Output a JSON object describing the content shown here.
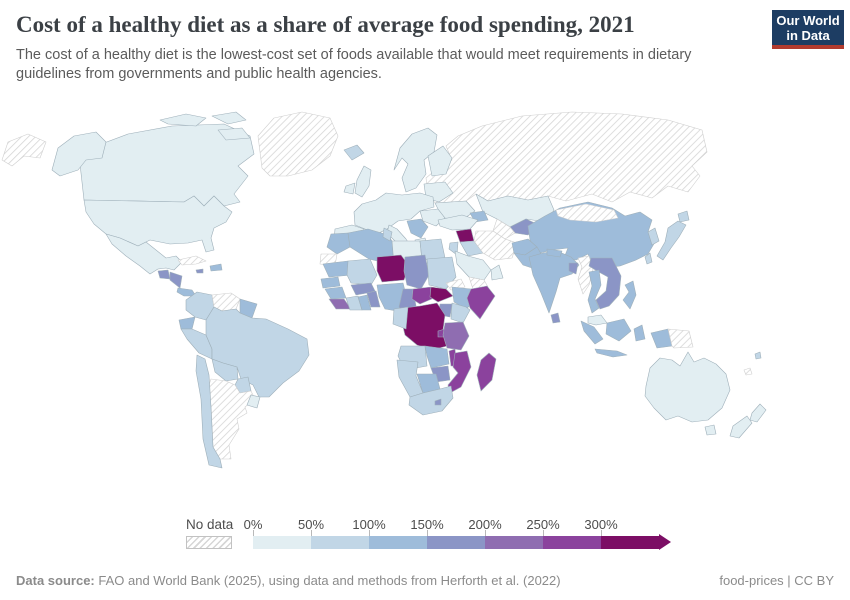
{
  "header": {
    "title": "Cost of a healthy diet as a share of average food spending, 2021",
    "subtitle": "The cost of a healthy diet is the lowest-cost set of foods available that would meet requirements in dietary guidelines from governments and public health agencies.",
    "logo": {
      "line1": "Our World",
      "line2": "in Data",
      "bg_color": "#1d3d63",
      "accent_color": "#b13b2f",
      "text_color": "#ffffff"
    }
  },
  "legend": {
    "no_data_label": "No data",
    "tick_labels": [
      "0%",
      "50%",
      "100%",
      "150%",
      "200%",
      "250%",
      "300%"
    ],
    "bin_colors": [
      "#e2eef2",
      "#c1d6e6",
      "#9ebcda",
      "#8b95c6",
      "#8f6db1",
      "#8b429d",
      "#7c0e65"
    ]
  },
  "footer": {
    "source_label": "Data source:",
    "source_text": " FAO and World Bank (2025), using data and methods from Herforth et al. (2022)",
    "note_right": "food-prices | CC BY"
  },
  "map": {
    "ocean_color": "#ffffff",
    "border_color": "#9fb0ba",
    "nodata_border_color": "#cfcfcf",
    "hatch_line_color": "#d6d6d6"
  },
  "chart_data": {
    "type": "choropleth",
    "title": "Cost of a healthy diet as a share of average food spending, 2021",
    "unit": "% of average food spending",
    "legend_ticks": [
      "0%",
      "50%",
      "100%",
      "150%",
      "200%",
      "250%",
      "300%"
    ],
    "bin_labels": [
      "No data",
      "0-50%",
      "50-100%",
      "100-150%",
      "150-200%",
      "200-250%",
      "250-300%",
      "300%+"
    ],
    "regions": {
      "russia": 0,
      "russia-far-east": 0,
      "greenland": 0,
      "canada": 1,
      "canada-arctic": 1,
      "alaska": 1,
      "usa": 1,
      "mexico": 1,
      "guatemala": 4,
      "honduras-nicaragua": 4,
      "costa-rica-panama": 3,
      "cuba": 0,
      "jamaica": 4,
      "hispaniola": 3,
      "colombia": 2,
      "venezuela": 0,
      "guianas": 3,
      "ecuador": 3,
      "peru": 2,
      "brazil": 2,
      "bolivia": 2,
      "paraguay": 2,
      "argentina": 0,
      "chile": 2,
      "uruguay": 1,
      "iceland": 2,
      "ireland": 1,
      "uk": 1,
      "scandinavia": 1,
      "finland": 1,
      "belarus-baltics": 1,
      "europe-central": 1,
      "iberia": 1,
      "italy": 1,
      "balkans": 3,
      "greece": 1,
      "romania-bulgaria": 1,
      "ukraine": 1,
      "kazakhstan": 1,
      "uzbekistan": 4,
      "turkmenistan": 0,
      "caucasus": 3,
      "turkey": 1,
      "syria": 7,
      "iraq": 2,
      "jordan-israel": 2,
      "iran": 0,
      "saudi-arabia": 1,
      "yemen": 0,
      "oman": 1,
      "morocco": 3,
      "western-sahara": 0,
      "algeria": 3,
      "tunisia": 2,
      "libya": 1,
      "egypt": 2,
      "mauritania": 3,
      "mali": 2,
      "niger": 7,
      "chad": 4,
      "sudan": 2,
      "eritrea": 0,
      "senegal": 3,
      "guinea": 3,
      "sierra-leone-liberia": 5,
      "ivory-coast": 2,
      "ghana": 3,
      "togo-benin": 4,
      "burkina-faso": 4,
      "nigeria": 3,
      "cameroon": 4,
      "central-african-republic": 6,
      "south-sudan": 7,
      "ethiopia": 3,
      "somalia": 6,
      "kenya": 2,
      "uganda": 4,
      "dr-congo": 7,
      "gabon-congo": 2,
      "rwanda-burundi": 6,
      "tanzania": 5,
      "angola": 2,
      "zambia": 3,
      "malawi": 6,
      "mozambique": 6,
      "zimbabwe": 4,
      "botswana": 3,
      "namibia": 2,
      "south-africa": 2,
      "lesotho": 4,
      "madagascar": 6,
      "china": 3,
      "mongolia": 0,
      "korea": 2,
      "japan": 2,
      "taiwan": 2,
      "afghanistan": 3,
      "pakistan": 3,
      "india": 3,
      "nepal": 3,
      "sri-lanka": 4,
      "bangladesh": 4,
      "myanmar": 0,
      "indochina": 4,
      "thailand": 3,
      "malaysia": 1,
      "sumatra": 3,
      "java": 3,
      "borneo": 3,
      "sulawesi": 3,
      "philippines": 3,
      "new-guinea-west": 3,
      "papua-new-guinea": 0,
      "australia": 1,
      "tasmania": 1,
      "new-zealand": 1,
      "fiji": 2,
      "new-caledonia": 0
    }
  }
}
